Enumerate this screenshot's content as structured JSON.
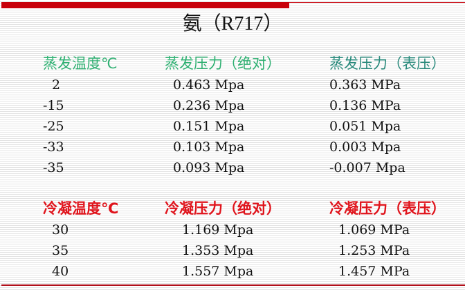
{
  "title": "氨（R717）",
  "colors": {
    "evaporation_header": "#2fb072",
    "evaporation_gauge_header": "#2a8a7c",
    "condensation_header": "#e0141c",
    "accent_bar": "#c8000a"
  },
  "evaporation": {
    "headers": [
      "蒸发温度℃",
      "蒸发压力（绝对）",
      "蒸发压力（表压）"
    ],
    "rows": [
      [
        "2",
        "0.463 Mpa",
        "0.363 MPa"
      ],
      [
        "-15",
        "0.236 Mpa",
        "0.136 MPa"
      ],
      [
        "-25",
        "0.151 Mpa",
        "0.051 Mpa"
      ],
      [
        "-33",
        "0.103 Mpa",
        "0.003 Mpa"
      ],
      [
        "-35",
        "0.093 Mpa",
        "-0.007 Mpa"
      ]
    ]
  },
  "condensation": {
    "headers": [
      "冷凝温度℃",
      "冷凝压力（绝对）",
      "冷凝压力（表压）"
    ],
    "rows": [
      [
        "30",
        "1.169 Mpa",
        "1.069 MPa"
      ],
      [
        "35",
        "1.353 Mpa",
        "1.253 MPa"
      ],
      [
        "40",
        "1.557 Mpa",
        "1.457 MPa"
      ]
    ]
  }
}
